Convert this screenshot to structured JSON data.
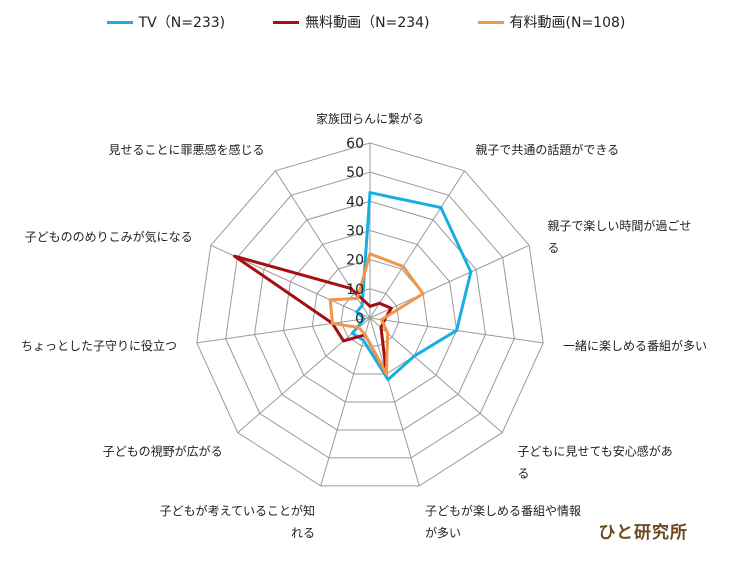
{
  "brand": "ひと研究所",
  "chart_data": {
    "type": "radar",
    "rmax": 60,
    "ticks": [
      0,
      10,
      20,
      30,
      40,
      50,
      60
    ],
    "grid": true,
    "legend_position": "top",
    "categories": [
      [
        "家族団らんに繋がる"
      ],
      [
        "親子で共通の話題ができる"
      ],
      [
        "親子で楽しい時間が過ごせ",
        "る"
      ],
      [
        "一緒に楽しめる番組が多い"
      ],
      [
        "子どもに見せても安心感があ",
        "る"
      ],
      [
        "子どもが楽しめる番組や情報",
        "が多い"
      ],
      [
        "子どもが考えていることが知",
        "れる"
      ],
      [
        "子どもの視野が広がる"
      ],
      [
        "ちょっとした子守りに役立つ"
      ],
      [
        "子どもののめりこみが気になる"
      ],
      [
        "見せることに罪悪感を感じる"
      ]
    ],
    "series": [
      {
        "name": "TV（N=233)",
        "color": "#1aaee0",
        "values": [
          43,
          45,
          38,
          30,
          20,
          22,
          8,
          8,
          2,
          5,
          5
        ]
      },
      {
        "name": "無料動画（N=234)",
        "color": "#a50f12",
        "values": [
          4,
          6,
          8,
          5,
          5,
          20,
          6,
          12,
          13,
          51,
          12
        ]
      },
      {
        "name": "有料動画(N=108)",
        "color": "#f0964a",
        "values": [
          22,
          21,
          20,
          4,
          8,
          20,
          6,
          5,
          13,
          15,
          8
        ]
      }
    ]
  }
}
